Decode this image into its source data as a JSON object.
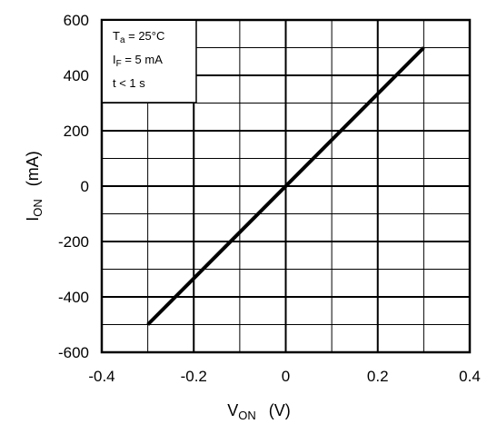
{
  "chart_data": {
    "type": "line",
    "series": [
      {
        "values": [
          [
            -0.3,
            -500
          ],
          [
            0.3,
            500
          ]
        ]
      }
    ],
    "xlim": [
      -0.4,
      0.4
    ],
    "ylim": [
      -600,
      600
    ],
    "x_ticks": [
      -0.4,
      -0.2,
      0,
      0.2,
      0.4
    ],
    "y_ticks": [
      600,
      400,
      200,
      0,
      -200,
      -400,
      -600
    ],
    "x_tick_labels": [
      "-0.4",
      "-0.2",
      "0",
      "0.2",
      "0.4"
    ],
    "y_tick_labels": [
      "600",
      "400",
      "200",
      "0",
      "-200",
      "-400",
      "-600"
    ],
    "xlabel": {
      "main": "V",
      "sub": "ON",
      "unit": "(V)"
    },
    "ylabel": {
      "main": "I",
      "sub": "ON",
      "unit": "(mA)"
    },
    "grid": true,
    "conditions": [
      {
        "main": "T",
        "sub": "a",
        "rest": " = 25°C"
      },
      {
        "main": "I",
        "sub": "F",
        "rest": " = 5 mA"
      },
      {
        "main": "t < 1 s",
        "sub": "",
        "rest": ""
      }
    ],
    "colors": {
      "line": "#000000",
      "grid": "#000000",
      "background": "#ffffff"
    }
  }
}
